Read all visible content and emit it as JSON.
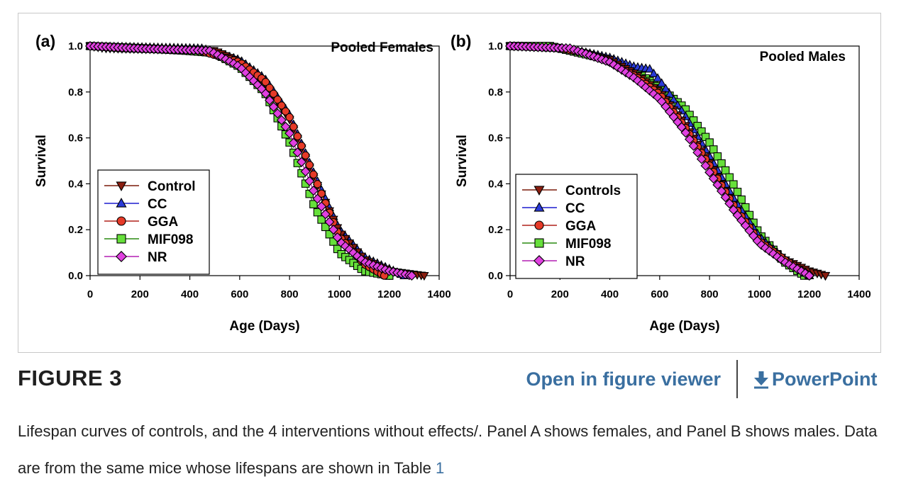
{
  "figure": {
    "label": "FIGURE 3",
    "open_viewer": "Open in figure viewer",
    "powerpoint": "PowerPoint",
    "caption_text": "Lifespan curves of controls, and the 4 interventions without effects/. Panel A shows females, and Panel B shows males. Data are from the same mice whose lifespans are shown in Table ",
    "caption_link": "1",
    "link_color": "#3a6fa0"
  },
  "chart_data": [
    {
      "type": "line",
      "panel_label": "(a)",
      "title": "Pooled Females",
      "xlabel": "Age (Days)",
      "ylabel": "Survival",
      "xlim": [
        0,
        1400
      ],
      "ylim": [
        0.0,
        1.0
      ],
      "xticks": [
        0,
        200,
        400,
        600,
        800,
        1000,
        1200,
        1400
      ],
      "yticks": [
        "0.0",
        "0.2",
        "0.4",
        "0.6",
        "0.8",
        "1.0"
      ],
      "legend_position": "bottom-left",
      "series": [
        {
          "name": "Control",
          "color": "#7a1a0a",
          "fill": "#8b1e10",
          "marker": "triangle-down",
          "x": [
            0,
            60,
            500,
            600,
            700,
            800,
            900,
            1000,
            1100,
            1200,
            1340
          ],
          "y": [
            1.0,
            0.99,
            0.98,
            0.93,
            0.84,
            0.68,
            0.42,
            0.19,
            0.07,
            0.02,
            0.0
          ]
        },
        {
          "name": "CC",
          "color": "#1c1ccf",
          "fill": "#2a3ad8",
          "marker": "triangle-up",
          "x": [
            0,
            450,
            600,
            700,
            800,
            900,
            1000,
            1100,
            1200,
            1260
          ],
          "y": [
            1.0,
            0.99,
            0.94,
            0.86,
            0.7,
            0.44,
            0.2,
            0.08,
            0.03,
            0.0
          ]
        },
        {
          "name": "GGA",
          "color": "#b0201a",
          "fill": "#e63a28",
          "marker": "circle",
          "x": [
            0,
            120,
            440,
            600,
            700,
            800,
            900,
            1000,
            1100,
            1180
          ],
          "y": [
            1.0,
            0.99,
            0.98,
            0.93,
            0.85,
            0.69,
            0.43,
            0.17,
            0.05,
            0.0
          ]
        },
        {
          "name": "MIF098",
          "color": "#2a8a10",
          "fill": "#66e03a",
          "marker": "square",
          "x": [
            0,
            220,
            380,
            500,
            600,
            700,
            800,
            900,
            1000,
            1100,
            1200
          ],
          "y": [
            1.0,
            0.99,
            0.98,
            0.97,
            0.91,
            0.8,
            0.58,
            0.3,
            0.1,
            0.02,
            0.0
          ]
        },
        {
          "name": "NR",
          "color": "#b41fb4",
          "fill": "#e040e0",
          "marker": "diamond",
          "x": [
            0,
            180,
            480,
            600,
            700,
            800,
            900,
            1000,
            1100,
            1200,
            1290
          ],
          "y": [
            1.0,
            0.99,
            0.98,
            0.91,
            0.8,
            0.62,
            0.36,
            0.15,
            0.06,
            0.02,
            0.0
          ]
        }
      ]
    },
    {
      "type": "line",
      "panel_label": "(b)",
      "title": "Pooled Males",
      "xlabel": "Age (Days)",
      "ylabel": "Survival",
      "xlim": [
        0,
        1400
      ],
      "ylim": [
        0.0,
        1.0
      ],
      "xticks": [
        0,
        200,
        400,
        600,
        800,
        1000,
        1200,
        1400
      ],
      "yticks": [
        "0.0",
        "0.2",
        "0.4",
        "0.6",
        "0.8",
        "1.0"
      ],
      "legend_position": "bottom-left",
      "series": [
        {
          "name": "Controls",
          "color": "#7a1a0a",
          "fill": "#8b1e10",
          "marker": "triangle-down",
          "x": [
            0,
            220,
            400,
            500,
            600,
            700,
            800,
            900,
            1000,
            1100,
            1200,
            1265
          ],
          "y": [
            1.0,
            0.99,
            0.94,
            0.88,
            0.8,
            0.66,
            0.49,
            0.3,
            0.15,
            0.07,
            0.02,
            0.0
          ]
        },
        {
          "name": "CC",
          "color": "#1c1ccf",
          "fill": "#2a3ad8",
          "marker": "triangle-up",
          "x": [
            0,
            230,
            400,
            500,
            560,
            600,
            700,
            800,
            900,
            1000,
            1100,
            1200
          ],
          "y": [
            1.0,
            0.99,
            0.95,
            0.91,
            0.9,
            0.85,
            0.7,
            0.52,
            0.33,
            0.17,
            0.07,
            0.0
          ]
        },
        {
          "name": "GGA",
          "color": "#b0201a",
          "fill": "#e63a28",
          "marker": "circle",
          "x": [
            0,
            200,
            300,
            400,
            500,
            600,
            700,
            800,
            900,
            1000,
            1100,
            1200
          ],
          "y": [
            1.0,
            0.99,
            0.97,
            0.93,
            0.87,
            0.79,
            0.65,
            0.48,
            0.3,
            0.15,
            0.07,
            0.0
          ]
        },
        {
          "name": "MIF098",
          "color": "#2a8a10",
          "fill": "#66e03a",
          "marker": "square",
          "x": [
            0,
            160,
            400,
            500,
            600,
            700,
            800,
            900,
            1000,
            1100,
            1180
          ],
          "y": [
            1.0,
            1.0,
            0.94,
            0.89,
            0.82,
            0.73,
            0.58,
            0.39,
            0.18,
            0.06,
            0.0
          ]
        },
        {
          "name": "NR",
          "color": "#b41fb4",
          "fill": "#e040e0",
          "marker": "diamond",
          "x": [
            0,
            240,
            400,
            500,
            600,
            700,
            800,
            900,
            1000,
            1100,
            1200
          ],
          "y": [
            1.0,
            0.99,
            0.93,
            0.86,
            0.77,
            0.63,
            0.45,
            0.28,
            0.14,
            0.06,
            0.0
          ]
        }
      ]
    }
  ]
}
